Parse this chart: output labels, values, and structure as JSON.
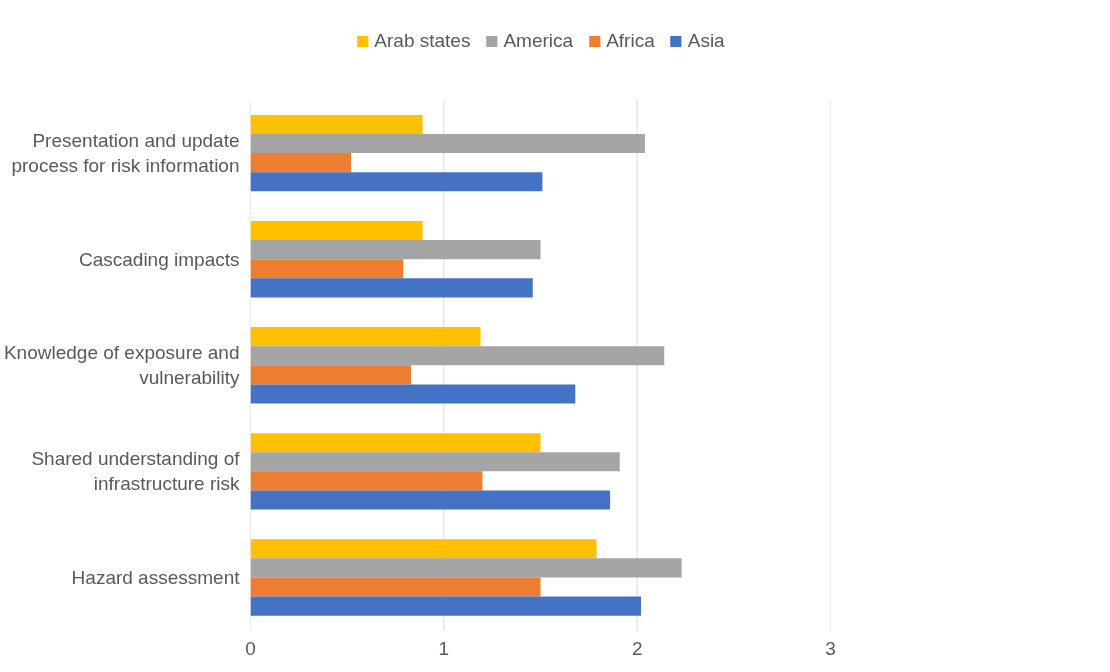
{
  "chart_data": {
    "type": "bar",
    "orientation": "horizontal",
    "categories": [
      "Presentation and update process for risk information",
      "Cascading impacts",
      "Knowledge of exposure and vulnerability",
      "Shared understanding of infrastructure risk",
      "Hazard assessment"
    ],
    "series": [
      {
        "name": "Arab states",
        "color": "#ffc000",
        "values": [
          0.89,
          0.89,
          1.19,
          1.5,
          1.79
        ]
      },
      {
        "name": "America",
        "color": "#a5a5a5",
        "values": [
          2.04,
          1.5,
          2.14,
          1.91,
          2.23
        ]
      },
      {
        "name": "Africa",
        "color": "#ed7d31",
        "values": [
          0.52,
          0.79,
          0.83,
          1.2,
          1.5
        ]
      },
      {
        "name": "Asia",
        "color": "#4472c4",
        "values": [
          1.51,
          1.46,
          1.68,
          1.86,
          2.02
        ]
      }
    ],
    "xlim": [
      0,
      3
    ],
    "xticks": [
      0,
      1,
      2,
      3
    ],
    "grid": "x",
    "legend": "top"
  }
}
